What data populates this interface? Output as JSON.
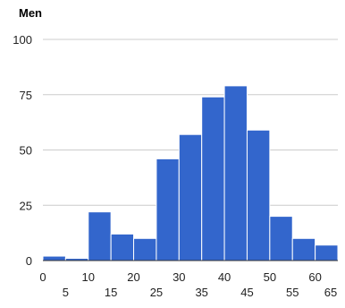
{
  "chart_data": {
    "type": "bar",
    "title": "Men",
    "xlabel": "",
    "ylabel": "",
    "bin_width": 5,
    "bins": [
      {
        "start": 0,
        "end": 5,
        "value": 2
      },
      {
        "start": 5,
        "end": 10,
        "value": 1
      },
      {
        "start": 10,
        "end": 15,
        "value": 22
      },
      {
        "start": 15,
        "end": 20,
        "value": 12
      },
      {
        "start": 20,
        "end": 25,
        "value": 10
      },
      {
        "start": 25,
        "end": 30,
        "value": 46
      },
      {
        "start": 30,
        "end": 35,
        "value": 57
      },
      {
        "start": 35,
        "end": 40,
        "value": 74
      },
      {
        "start": 40,
        "end": 45,
        "value": 79
      },
      {
        "start": 45,
        "end": 50,
        "value": 59
      },
      {
        "start": 50,
        "end": 55,
        "value": 20
      },
      {
        "start": 55,
        "end": 60,
        "value": 10
      },
      {
        "start": 60,
        "end": 65,
        "value": 7
      }
    ],
    "x_ticks_upper": [
      "0",
      "10",
      "20",
      "30",
      "40",
      "50",
      "60"
    ],
    "x_ticks_lower": [
      "5",
      "15",
      "25",
      "35",
      "45",
      "55",
      "65"
    ],
    "y_ticks": [
      "0",
      "25",
      "50",
      "75",
      "100"
    ],
    "xlim": [
      0,
      65
    ],
    "ylim": [
      0,
      100
    ],
    "grid": true,
    "legend": "none",
    "bar_color": "#3366cc"
  }
}
